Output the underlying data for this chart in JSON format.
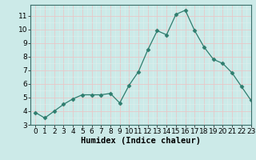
{
  "x": [
    0,
    1,
    2,
    3,
    4,
    5,
    6,
    7,
    8,
    9,
    10,
    11,
    12,
    13,
    14,
    15,
    16,
    17,
    18,
    19,
    20,
    21,
    22,
    23
  ],
  "y": [
    3.9,
    3.5,
    4.0,
    4.5,
    4.9,
    5.2,
    5.2,
    5.2,
    5.3,
    4.6,
    5.9,
    6.9,
    8.5,
    9.9,
    9.6,
    11.1,
    11.4,
    9.9,
    8.7,
    7.8,
    7.5,
    6.8,
    5.8,
    4.8
  ],
  "xlabel": "Humidex (Indice chaleur)",
  "xlim": [
    -0.5,
    23
  ],
  "ylim": [
    3,
    11.8
  ],
  "yticks": [
    3,
    4,
    5,
    6,
    7,
    8,
    9,
    10,
    11
  ],
  "xticks": [
    0,
    1,
    2,
    3,
    4,
    5,
    6,
    7,
    8,
    9,
    10,
    11,
    12,
    13,
    14,
    15,
    16,
    17,
    18,
    19,
    20,
    21,
    22,
    23
  ],
  "xtick_labels": [
    "0",
    "1",
    "2",
    "3",
    "4",
    "5",
    "6",
    "7",
    "8",
    "9",
    "10",
    "11",
    "12",
    "13",
    "14",
    "15",
    "16",
    "17",
    "18",
    "19",
    "20",
    "21",
    "22",
    "23"
  ],
  "line_color": "#2e7d6e",
  "marker": "D",
  "marker_size": 2.5,
  "bg_color": "#cceae8",
  "major_grid_color": "#e8c8c8",
  "minor_grid_color": "#dff0ef",
  "xlabel_fontsize": 7.5,
  "tick_fontsize": 6.5
}
